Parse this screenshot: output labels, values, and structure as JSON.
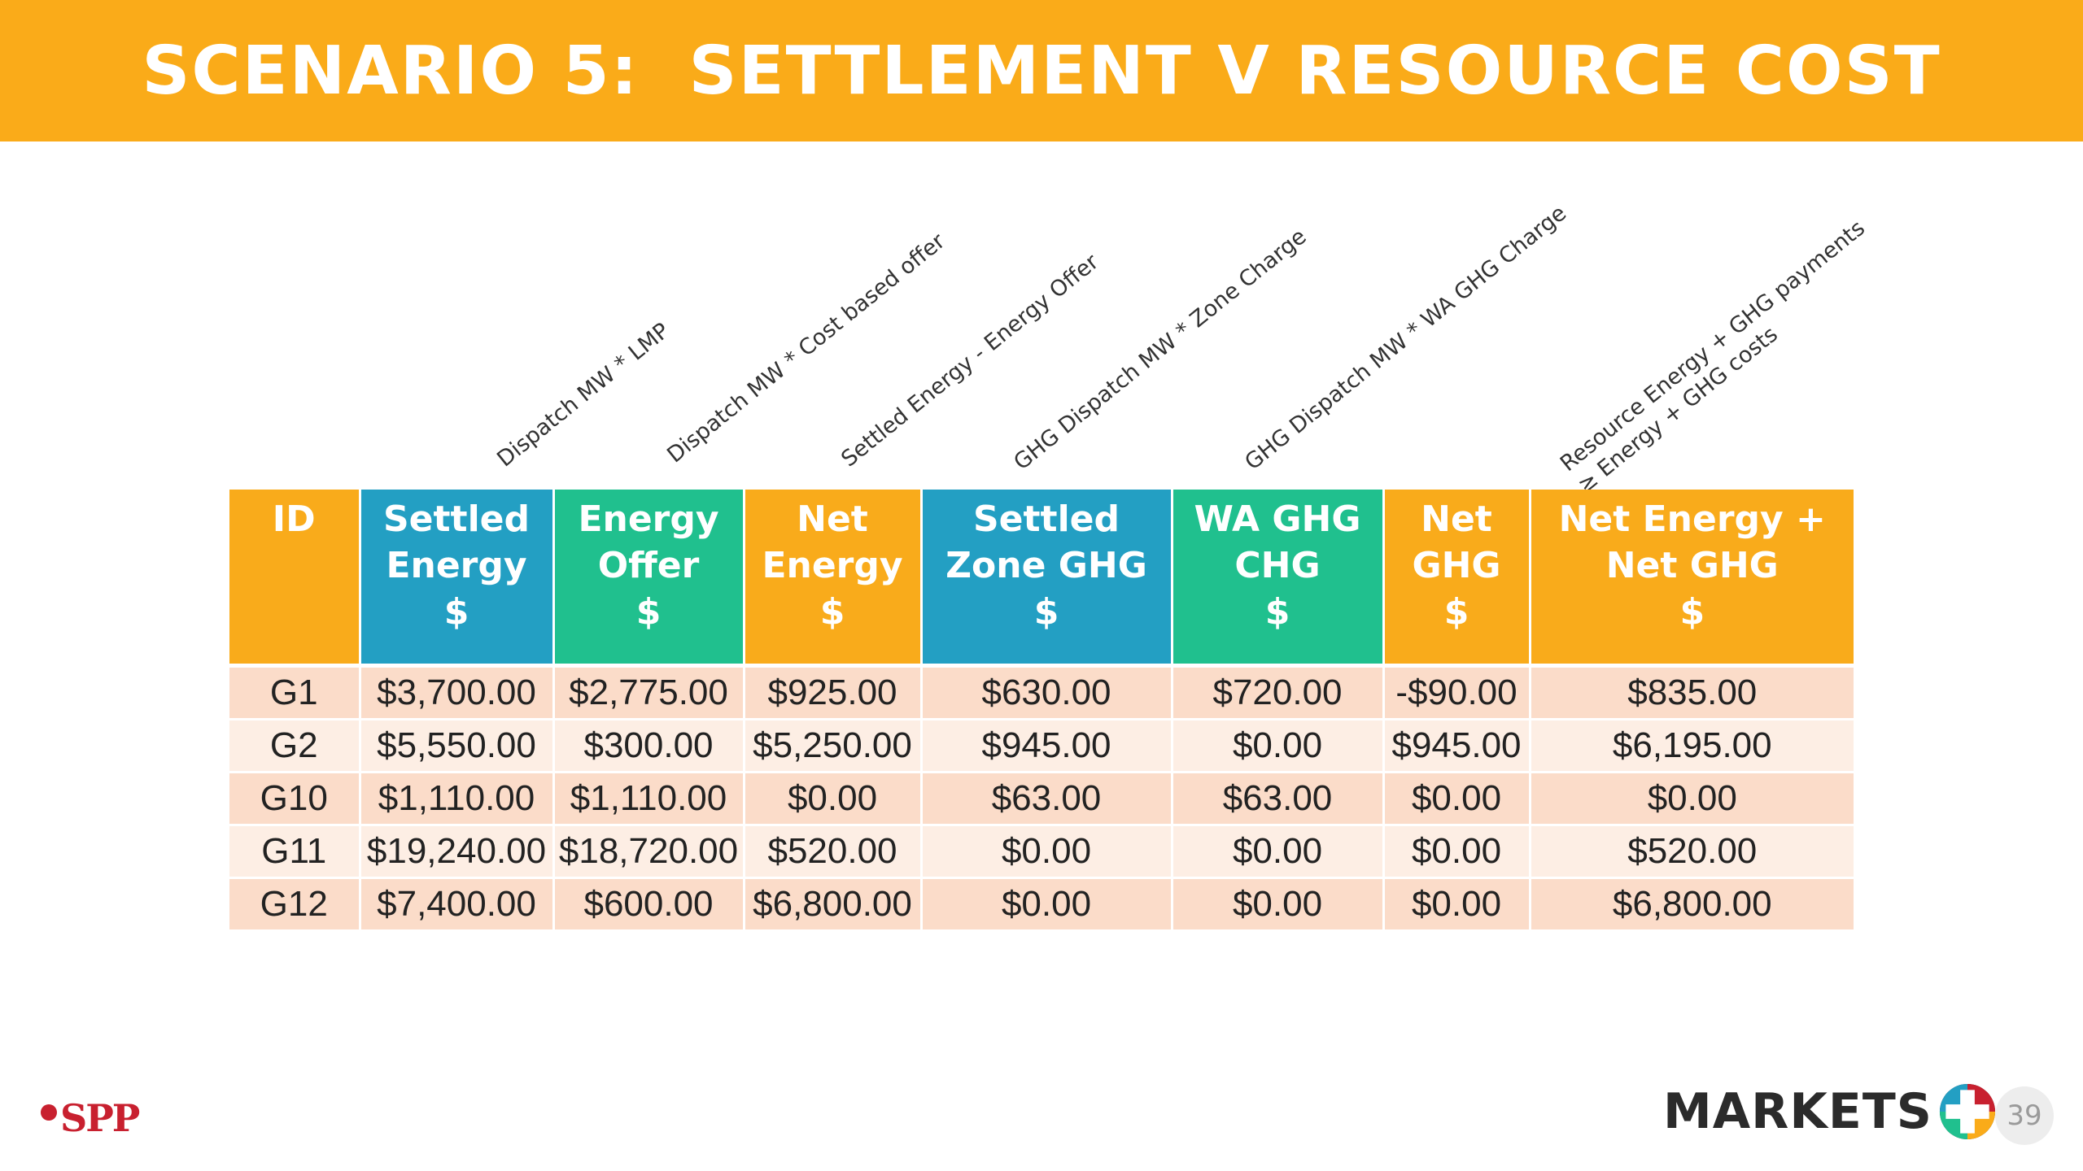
{
  "title": "SCENARIO 5:  SETTLEMENT V RESOURCE COST",
  "annotations": [
    {
      "id": "settled-energy",
      "lines": [
        "Dispatch MW * LMP"
      ]
    },
    {
      "id": "energy-offer",
      "lines": [
        "Dispatch MW * Cost based offer"
      ]
    },
    {
      "id": "net-energy",
      "lines": [
        "Settled Energy - Energy Offer"
      ]
    },
    {
      "id": "settled-zone-ghg",
      "lines": [
        "GHG Dispatch MW * Zone Charge"
      ]
    },
    {
      "id": "wa-ghg-chg",
      "lines": [
        "GHG Dispatch MW * WA GHG Charge"
      ]
    },
    {
      "id": "net-total",
      "lines": [
        "Resource Energy + GHG payments",
        "≥ Energy + GHG costs"
      ]
    }
  ],
  "table": {
    "columns": [
      {
        "lines": [
          "ID"
        ],
        "color": "#F9AB1B"
      },
      {
        "lines": [
          "Settled",
          "Energy",
          "$"
        ],
        "color": "#239FC3"
      },
      {
        "lines": [
          "Energy",
          "Offer",
          "$"
        ],
        "color": "#20C08E"
      },
      {
        "lines": [
          "Net",
          "Energy",
          "$"
        ],
        "color": "#F9AB1B"
      },
      {
        "lines": [
          "Settled",
          "Zone GHG",
          "$"
        ],
        "color": "#239FC3"
      },
      {
        "lines": [
          "WA GHG",
          "CHG",
          "$"
        ],
        "color": "#20C08E"
      },
      {
        "lines": [
          "Net",
          "GHG",
          "$"
        ],
        "color": "#F9AB1B"
      },
      {
        "lines": [
          "Net Energy +",
          "Net GHG",
          "$"
        ],
        "color": "#F9AB1B"
      }
    ],
    "rows": [
      [
        "G1",
        "$3,700.00",
        "$2,775.00",
        "$925.00",
        "$630.00",
        "$720.00",
        "-$90.00",
        "$835.00"
      ],
      [
        "G2",
        "$5,550.00",
        "$300.00",
        "$5,250.00",
        "$945.00",
        "$0.00",
        "$945.00",
        "$6,195.00"
      ],
      [
        "G10",
        "$1,110.00",
        "$1,110.00",
        "$0.00",
        "$63.00",
        "$63.00",
        "$0.00",
        "$0.00"
      ],
      [
        "G11",
        "$19,240.00",
        "$18,720.00",
        "$520.00",
        "$0.00",
        "$0.00",
        "$0.00",
        "$520.00"
      ],
      [
        "G12",
        "$7,400.00",
        "$600.00",
        "$6,800.00",
        "$0.00",
        "$0.00",
        "$0.00",
        "$6,800.00"
      ]
    ]
  },
  "footer": {
    "spp_logo_text": "SPP",
    "markets_logo_text": "MARKETS",
    "page_number": "39"
  },
  "colors": {
    "brand_orange": "#FAAB19",
    "brand_blue": "#239FC3",
    "brand_green": "#20C08E",
    "row_odd": "#FBDCC9",
    "row_even": "#FDEEE4",
    "spp_red": "#C8202F"
  }
}
